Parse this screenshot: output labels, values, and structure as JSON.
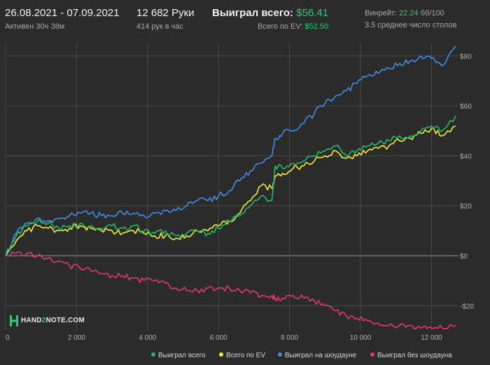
{
  "header": {
    "date_range": "26.08.2021 - 07.09.2021",
    "active": "Активен 30ч 38м",
    "hands": "12 682 Руки",
    "hands_per_hour": "414 рук в час",
    "won_label": "Выиграл всего:",
    "won_value": "$56.41",
    "ev_label": "Всего по EV:",
    "ev_value": "$52.50",
    "winrate_label": "Винрейт:",
    "winrate_value": "22.24",
    "winrate_unit": "бб/100",
    "tables": "3.5 среднее число столов"
  },
  "logo": {
    "prefix": "HAND",
    "accent": "2",
    "suffix": "NOTE.COM"
  },
  "colors": {
    "won_total": "#27b86a",
    "ev_total": "#f2ec3a",
    "showdown": "#3f8fe6",
    "non_showdown": "#e03a68",
    "grid": "#4a4a4a",
    "zero_line": "#9a9a9a"
  },
  "chart_data": {
    "type": "line",
    "xlim": [
      0,
      12682
    ],
    "ylim": [
      -30,
      85
    ],
    "x_ticks": [
      0,
      2000,
      4000,
      6000,
      8000,
      10000,
      12000
    ],
    "x_tick_labels": [
      "0",
      "2 000",
      "4 000",
      "6 000",
      "8 000",
      "10 000",
      "12 000"
    ],
    "y_ticks": [
      -20,
      0,
      20,
      40,
      60,
      80
    ],
    "y_tick_labels": [
      "-$20",
      "$0",
      "$20",
      "$40",
      "$60",
      "$80"
    ],
    "legend_position": "bottom-right",
    "x": [
      0,
      300,
      600,
      900,
      1200,
      1500,
      1800,
      2100,
      2400,
      2700,
      3000,
      3300,
      3600,
      3900,
      4200,
      4500,
      4800,
      5100,
      5400,
      5700,
      6000,
      6300,
      6600,
      6900,
      7200,
      7500,
      7600,
      7800,
      8100,
      8400,
      8700,
      9000,
      9300,
      9600,
      9900,
      10200,
      10500,
      10800,
      11100,
      11400,
      11700,
      12000,
      12300,
      12682
    ],
    "series": [
      {
        "name": "Выиграл всего",
        "key": "won_total",
        "values": [
          0,
          8,
          12,
          14,
          13,
          11,
          12,
          13,
          12,
          11,
          12,
          11,
          12,
          10,
          9,
          10,
          8,
          9,
          10,
          9,
          11,
          14,
          16,
          20,
          24,
          22,
          36,
          35,
          37,
          38,
          40,
          42,
          44,
          40,
          42,
          44,
          45,
          46,
          48,
          48,
          50,
          52,
          50,
          56
        ]
      },
      {
        "name": "Всего по EV",
        "key": "ev_total",
        "values": [
          0,
          6,
          10,
          12,
          11,
          10,
          11,
          12,
          11,
          10,
          10,
          9,
          10,
          9,
          8,
          8,
          7,
          8,
          10,
          10,
          12,
          14,
          17,
          22,
          28,
          27,
          32,
          33,
          35,
          36,
          38,
          40,
          42,
          39,
          40,
          42,
          43,
          44,
          46,
          47,
          49,
          51,
          48,
          52
        ]
      },
      {
        "name": "Выиграл на шоудауне",
        "key": "showdown",
        "values": [
          0,
          9,
          13,
          15,
          14,
          15,
          16,
          17,
          17,
          16,
          16,
          17,
          17,
          16,
          17,
          18,
          18,
          20,
          22,
          22,
          24,
          26,
          30,
          34,
          37,
          40,
          47,
          49,
          50,
          53,
          57,
          61,
          64,
          66,
          69,
          72,
          73,
          75,
          77,
          78,
          80,
          79,
          76,
          84
        ]
      },
      {
        "name": "Выиграл без шоудауна",
        "key": "non_showdown",
        "values": [
          0,
          1,
          1,
          0,
          -1,
          -2,
          -4,
          -5,
          -6,
          -7,
          -8,
          -8,
          -9,
          -10,
          -10,
          -11,
          -13,
          -14,
          -14,
          -13,
          -13,
          -13,
          -14,
          -15,
          -16,
          -16,
          -17,
          -17,
          -16,
          -17,
          -18,
          -20,
          -22,
          -24,
          -25,
          -26,
          -27,
          -28,
          -28,
          -28,
          -29,
          -29,
          -29,
          -28
        ]
      }
    ]
  }
}
